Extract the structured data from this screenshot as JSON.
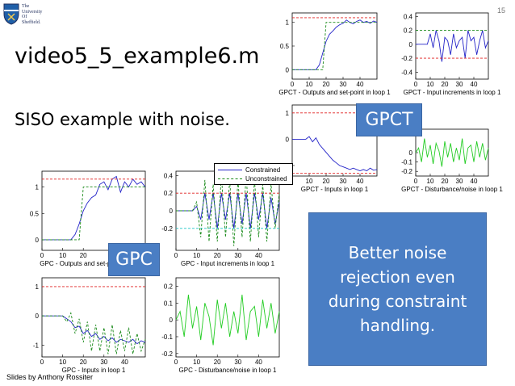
{
  "logo": {
    "lines": [
      "The",
      "University",
      "Of",
      "Sheffield."
    ]
  },
  "page_number": "15",
  "title": "video5_5_example6.m",
  "subtitle": "SISO example with noise.",
  "tags": {
    "gpct": "GPCT",
    "gpc": "GPC"
  },
  "callout": "Better noise rejection even during constraint handling.",
  "credit": "Slides by Anthony Rossiter",
  "legend": {
    "constrained": "Constrained",
    "unconstrained": "Unconstrained"
  },
  "colors": {
    "blue": "#2323c8",
    "green": "#1a8a1a",
    "red": "#e02020",
    "limegreen": "#22cc22",
    "cyan": "#1ec8c8",
    "box": "#4a7ec4"
  },
  "chart_data": [
    {
      "id": "gpct-outputs",
      "type": "line",
      "xlabel": "GPCT - Outputs and set-point in loop 1",
      "xlim": [
        0,
        50
      ],
      "ylim": [
        -0.2,
        1.2
      ],
      "xticks": [
        "0",
        "10",
        "20",
        "30",
        "40"
      ],
      "yticks": [
        "0",
        "0.5",
        "1"
      ],
      "x": [
        0,
        2,
        4,
        6,
        8,
        10,
        12,
        14,
        16,
        18,
        20,
        22,
        24,
        26,
        28,
        30,
        32,
        34,
        36,
        38,
        40,
        42,
        44,
        46,
        48,
        50
      ],
      "series": [
        {
          "color": "blue",
          "style": "solid",
          "values": [
            0,
            0,
            0,
            0,
            0,
            0,
            0,
            0,
            0.1,
            0.35,
            0.6,
            0.75,
            0.82,
            0.9,
            0.95,
            0.98,
            1.05,
            1.0,
            0.97,
            1.02,
            1.05,
            1.0,
            1.02,
            0.98,
            1.03,
            1.0
          ]
        },
        {
          "color": "green",
          "style": "dashed",
          "values": [
            0,
            0,
            0,
            0,
            0,
            0,
            0,
            0,
            0,
            0,
            1,
            1,
            1,
            1,
            1,
            1,
            1,
            1,
            1,
            1,
            1,
            1,
            1,
            1,
            1,
            1
          ]
        },
        {
          "color": "red",
          "style": "dashed",
          "values": [
            1.1,
            1.1,
            1.1,
            1.1,
            1.1,
            1.1,
            1.1,
            1.1,
            1.1,
            1.1,
            1.1,
            1.1,
            1.1,
            1.1,
            1.1,
            1.1,
            1.1,
            1.1,
            1.1,
            1.1,
            1.1,
            1.1,
            1.1,
            1.1,
            1.1,
            1.1
          ]
        }
      ]
    },
    {
      "id": "gpct-input-increments",
      "type": "line",
      "xlabel": "GPCT - Input increments in loop 1",
      "xlim": [
        0,
        50
      ],
      "ylim": [
        -0.5,
        0.45
      ],
      "xticks": [
        "0",
        "10",
        "20",
        "30",
        "40"
      ],
      "yticks": [
        "0.4",
        "0.2",
        "0",
        "-0.2",
        "-0.4"
      ],
      "x": [
        0,
        2,
        4,
        6,
        8,
        10,
        12,
        14,
        16,
        18,
        20,
        22,
        24,
        26,
        28,
        30,
        32,
        34,
        36,
        38,
        40,
        42,
        44,
        46,
        48,
        50
      ],
      "series": [
        {
          "color": "blue",
          "style": "solid",
          "values": [
            0,
            0,
            0,
            0,
            0,
            0.15,
            -0.05,
            0.2,
            0.05,
            -0.25,
            0.1,
            0.05,
            -0.15,
            0.15,
            -0.05,
            0.05,
            0.1,
            -0.2,
            0.2,
            0.05,
            0.1,
            -0.15,
            0.05,
            0.2,
            -0.05,
            0.05
          ]
        },
        {
          "color": "green",
          "style": "dashed",
          "values": [
            0.2,
            0.2,
            0.2,
            0.2,
            0.2,
            0.2,
            0.2,
            0.2,
            0.2,
            0.2,
            0.2,
            0.2,
            0.2,
            0.2,
            0.2,
            0.2,
            0.2,
            0.2,
            0.2,
            0.2,
            0.2,
            0.2,
            0.2,
            0.2,
            0.2,
            0.2
          ]
        },
        {
          "color": "red",
          "style": "dashed",
          "values": [
            -0.2,
            -0.2,
            -0.2,
            -0.2,
            -0.2,
            -0.2,
            -0.2,
            -0.2,
            -0.2,
            -0.2,
            -0.2,
            -0.2,
            -0.2,
            -0.2,
            -0.2,
            -0.2,
            -0.2,
            -0.2,
            -0.2,
            -0.2,
            -0.2,
            -0.2,
            -0.2,
            -0.2,
            -0.2,
            -0.2
          ]
        }
      ]
    },
    {
      "id": "gpct-inputs",
      "type": "line",
      "xlabel": "GPCT - Inputs in loop 1",
      "xlim": [
        0,
        50
      ],
      "ylim": [
        -1.4,
        1.3
      ],
      "xticks": [
        "10",
        "20",
        "30",
        "40"
      ],
      "yticks": [
        "1",
        "0",
        "-1"
      ],
      "x": [
        0,
        2,
        4,
        6,
        8,
        10,
        12,
        14,
        16,
        18,
        20,
        22,
        24,
        26,
        28,
        30,
        32,
        34,
        36,
        38,
        40,
        42,
        44,
        46,
        48,
        50
      ],
      "series": [
        {
          "color": "blue",
          "style": "solid",
          "values": [
            0,
            0,
            0,
            0,
            0,
            0.1,
            -0.1,
            0.05,
            -0.2,
            -0.35,
            -0.5,
            -0.65,
            -0.8,
            -0.9,
            -1.0,
            -1.05,
            -1.1,
            -1.15,
            -1.1,
            -1.15,
            -1.2,
            -1.15,
            -1.2,
            -1.1,
            -1.18,
            -1.15
          ]
        },
        {
          "color": "red",
          "style": "dashed",
          "values": [
            1,
            1,
            1,
            1,
            1,
            1,
            1,
            1,
            1,
            1,
            1,
            1,
            1,
            1,
            1,
            1,
            1,
            1,
            1,
            1,
            1,
            1,
            1,
            1,
            1,
            1
          ]
        },
        {
          "color": "red",
          "style": "dashed",
          "values": [
            -1.3,
            -1.3,
            -1.3,
            -1.3,
            -1.3,
            -1.3,
            -1.3,
            -1.3,
            -1.3,
            -1.3,
            -1.3,
            -1.3,
            -1.3,
            -1.3,
            -1.3,
            -1.3,
            -1.3,
            -1.3,
            -1.3,
            -1.3,
            -1.3,
            -1.3,
            -1.3,
            -1.3,
            -1.3,
            -1.3
          ]
        }
      ]
    },
    {
      "id": "gpct-disturbance",
      "type": "line",
      "xlabel": "GPCT - Disturbance/noise in loop 1",
      "xlim": [
        0,
        50
      ],
      "ylim": [
        -0.25,
        0.25
      ],
      "xticks": [
        "0",
        "10",
        "20",
        "30",
        "40"
      ],
      "yticks": [
        "0",
        "-0.1",
        "-0.2"
      ],
      "x": [
        0,
        2,
        4,
        6,
        8,
        10,
        12,
        14,
        16,
        18,
        20,
        22,
        24,
        26,
        28,
        30,
        32,
        34,
        36,
        38,
        40,
        42,
        44,
        46,
        48,
        50
      ],
      "series": [
        {
          "color": "limegreen",
          "style": "solid",
          "values": [
            0,
            0.05,
            -0.1,
            0.15,
            -0.05,
            0.08,
            -0.12,
            0.1,
            0.02,
            -0.15,
            0.12,
            -0.05,
            0.1,
            -0.1,
            0.05,
            -0.08,
            0.15,
            -0.12,
            0.05,
            0.08,
            -0.1,
            0.12,
            -0.05,
            0.1,
            -0.08,
            0.05
          ]
        }
      ]
    },
    {
      "id": "gpc-outputs",
      "type": "line",
      "xlabel": "GPC - Outputs and set-point in loop 1",
      "xlim": [
        0,
        50
      ],
      "ylim": [
        -0.2,
        1.3
      ],
      "xticks": [
        "0",
        "10",
        "20"
      ],
      "yticks": [
        "1",
        "0.5",
        "0"
      ],
      "x": [
        0,
        2,
        4,
        6,
        8,
        10,
        12,
        14,
        16,
        18,
        20,
        22,
        24,
        26,
        28,
        30,
        32,
        34,
        36,
        38,
        40,
        42,
        44,
        46,
        48,
        50
      ],
      "series": [
        {
          "color": "blue",
          "style": "solid",
          "values": [
            0,
            0,
            0,
            0,
            0,
            0,
            0,
            0,
            0.1,
            0.3,
            0.55,
            0.7,
            0.8,
            0.85,
            1.05,
            1.1,
            0.95,
            1.15,
            1.2,
            0.9,
            1.1,
            1.0,
            1.15,
            1.05,
            1.1,
            1.0
          ]
        },
        {
          "color": "green",
          "style": "dashed",
          "values": [
            0,
            0,
            0,
            0,
            0,
            0,
            0,
            0,
            0,
            0,
            1,
            1,
            1,
            1,
            1,
            1,
            1,
            1,
            1,
            1,
            1,
            1,
            1,
            1,
            1,
            1
          ]
        },
        {
          "color": "red",
          "style": "dashed",
          "values": [
            1.15,
            1.15,
            1.15,
            1.15,
            1.15,
            1.15,
            1.15,
            1.15,
            1.15,
            1.15,
            1.15,
            1.15,
            1.15,
            1.15,
            1.15,
            1.15,
            1.15,
            1.15,
            1.15,
            1.15,
            1.15,
            1.15,
            1.15,
            1.15,
            1.15,
            1.15
          ]
        }
      ]
    },
    {
      "id": "gpc-input-increments",
      "type": "line",
      "xlabel": "GPC - Input increments in loop 1",
      "xlim": [
        0,
        50
      ],
      "ylim": [
        -0.45,
        0.45
      ],
      "xticks": [
        "0",
        "10",
        "20",
        "30",
        "40"
      ],
      "yticks": [
        "0.4",
        "0.2",
        "0",
        "-0.2"
      ],
      "x": [
        0,
        2,
        4,
        6,
        8,
        10,
        12,
        14,
        16,
        18,
        20,
        22,
        24,
        26,
        28,
        30,
        32,
        34,
        36,
        38,
        40,
        42,
        44,
        46,
        48,
        50
      ],
      "series": [
        {
          "color": "blue",
          "style": "solid",
          "values": [
            0,
            0,
            0,
            0,
            0,
            0.05,
            -0.1,
            0.2,
            -0.1,
            0.2,
            -0.2,
            0.2,
            -0.1,
            0.2,
            -0.2,
            0.2,
            -0.15,
            0.2,
            -0.2,
            0.2,
            -0.1,
            0.2,
            -0.2,
            0.15,
            -0.15,
            0.1
          ]
        },
        {
          "color": "green",
          "style": "dashed",
          "values": [
            0,
            0,
            0,
            0,
            0,
            0.1,
            -0.3,
            0.35,
            -0.35,
            0.3,
            -0.35,
            0.4,
            -0.3,
            0.35,
            -0.4,
            0.35,
            -0.3,
            0.4,
            -0.35,
            0.35,
            -0.3,
            0.3,
            -0.35,
            0.3,
            -0.2,
            0.2
          ]
        },
        {
          "color": "red",
          "style": "dashed",
          "values": [
            0.2,
            0.2,
            0.2,
            0.2,
            0.2,
            0.2,
            0.2,
            0.2,
            0.2,
            0.2,
            0.2,
            0.2,
            0.2,
            0.2,
            0.2,
            0.2,
            0.2,
            0.2,
            0.2,
            0.2,
            0.2,
            0.2,
            0.2,
            0.2,
            0.2,
            0.2
          ]
        },
        {
          "color": "cyan",
          "style": "dashed",
          "values": [
            -0.2,
            -0.2,
            -0.2,
            -0.2,
            -0.2,
            -0.2,
            -0.2,
            -0.2,
            -0.2,
            -0.2,
            -0.2,
            -0.2,
            -0.2,
            -0.2,
            -0.2,
            -0.2,
            -0.2,
            -0.2,
            -0.2,
            -0.2,
            -0.2,
            -0.2,
            -0.2,
            -0.2,
            -0.2,
            -0.2
          ]
        }
      ]
    },
    {
      "id": "gpc-inputs",
      "type": "line",
      "xlabel": "GPC - Inputs in loop 1",
      "xlim": [
        0,
        50
      ],
      "ylim": [
        -1.4,
        1.3
      ],
      "xticks": [
        "0",
        "10",
        "20",
        "30",
        "40"
      ],
      "yticks": [
        "1",
        "0",
        "-1"
      ],
      "x": [
        0,
        2,
        4,
        6,
        8,
        10,
        12,
        14,
        16,
        18,
        20,
        22,
        24,
        26,
        28,
        30,
        32,
        34,
        36,
        38,
        40,
        42,
        44,
        46,
        48,
        50
      ],
      "series": [
        {
          "color": "blue",
          "style": "solid",
          "values": [
            0,
            0,
            0,
            0,
            0,
            0,
            -0.1,
            -0.2,
            -0.4,
            -0.35,
            -0.6,
            -0.5,
            -0.7,
            -0.6,
            -0.8,
            -0.7,
            -0.85,
            -0.75,
            -0.9,
            -0.8,
            -0.85,
            -0.9,
            -0.8,
            -0.95,
            -0.85,
            -0.9
          ]
        },
        {
          "color": "green",
          "style": "dashed",
          "values": [
            0,
            0,
            0,
            0,
            0,
            0,
            -0.2,
            0.1,
            -0.6,
            -0.1,
            -0.9,
            -0.2,
            -1.2,
            -0.3,
            -1.2,
            -0.4,
            -1.3,
            -0.3,
            -1.3,
            -0.5,
            -1.2,
            -0.4,
            -1.3,
            -0.6,
            -1.2,
            -0.8
          ]
        },
        {
          "color": "red",
          "style": "dashed",
          "values": [
            1,
            1,
            1,
            1,
            1,
            1,
            1,
            1,
            1,
            1,
            1,
            1,
            1,
            1,
            1,
            1,
            1,
            1,
            1,
            1,
            1,
            1,
            1,
            1,
            1,
            1
          ]
        }
      ]
    },
    {
      "id": "gpc-disturbance",
      "type": "line",
      "xlabel": "GPC - Disturbance/noise in loop 1",
      "xlim": [
        0,
        50
      ],
      "ylim": [
        -0.22,
        0.25
      ],
      "xticks": [
        "0",
        "10",
        "20",
        "30",
        "40"
      ],
      "yticks": [
        "0.2",
        "0.1",
        "0",
        "-0.1",
        "-0.2"
      ],
      "x": [
        0,
        2,
        4,
        6,
        8,
        10,
        12,
        14,
        16,
        18,
        20,
        22,
        24,
        26,
        28,
        30,
        32,
        34,
        36,
        38,
        40,
        42,
        44,
        46,
        48,
        50
      ],
      "series": [
        {
          "color": "limegreen",
          "style": "solid",
          "values": [
            0,
            0.05,
            -0.1,
            0.15,
            -0.05,
            0.08,
            -0.12,
            0.1,
            0.02,
            -0.15,
            0.12,
            -0.05,
            0.1,
            -0.1,
            0.05,
            -0.08,
            0.15,
            -0.12,
            0.05,
            0.08,
            -0.1,
            0.12,
            -0.05,
            0.1,
            -0.08,
            0.05
          ]
        }
      ]
    }
  ]
}
